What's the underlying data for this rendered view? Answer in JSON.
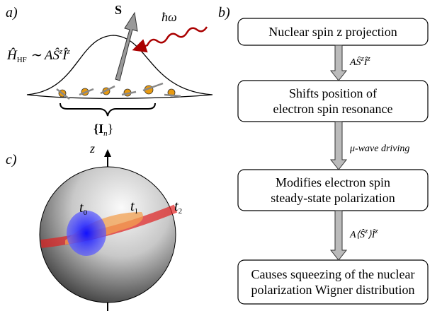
{
  "panels": {
    "a": "a)",
    "b": "b)",
    "c": "c)"
  },
  "panel_a": {
    "spin_label": "S",
    "photon_label": "ħω",
    "hamiltonian": {
      "lhs": "Ĥ",
      "lhs_sub": "HF",
      "rhs": " ∼ AŜ",
      "sup1": "z",
      "op": "Î",
      "sup2": "z"
    },
    "bath_label": {
      "open": "{I",
      "sub": "n",
      "close": "}"
    }
  },
  "panel_b": {
    "boxes": [
      [
        "Nuclear spin z projection"
      ],
      [
        "Shifts position of",
        "electron spin resonance"
      ],
      [
        "Modifies electron spin",
        "steady-state polarization"
      ],
      [
        "Causes squeezing of the nuclear",
        "polarization Wigner distribution"
      ]
    ],
    "arrow_labels": [
      {
        "a": "AŜ",
        "s1": "z",
        "b": "Î",
        "s2": "z"
      },
      {
        "a": "μ-wave driving"
      },
      {
        "a": "A⟨Ŝ",
        "s1": "z",
        "b": "⟩Î",
        "s2": "z"
      }
    ]
  },
  "panel_c": {
    "axis_label": "z",
    "times": [
      {
        "base": "t",
        "sub": "0"
      },
      {
        "base": "t",
        "sub": "1"
      },
      {
        "base": "t",
        "sub": "2"
      }
    ]
  }
}
